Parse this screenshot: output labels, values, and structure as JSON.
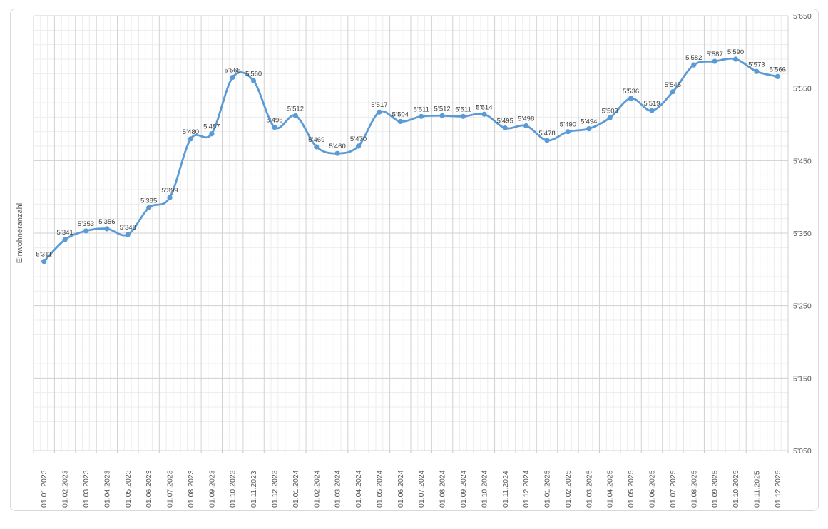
{
  "chart_style": {
    "line_color": "#5B9BD5",
    "marker_color": "#5B9BD5",
    "grid_major_color": "#d2d2d2",
    "grid_minor_color": "#ededed",
    "axis_line_color": "#c6c6c6",
    "axis_text_color": "#595959",
    "data_label_color": "#3d3d3d",
    "chart_border_color": "#d9d9d9",
    "background_color": "#ffffff"
  },
  "chart_data": {
    "type": "line",
    "title": "",
    "xlabel": "",
    "ylabel": "Einwohneranzahl",
    "legend": "none",
    "smooth": true,
    "marker": "circle",
    "grid": true,
    "ylim": [
      5050,
      5650
    ],
    "y_major_unit": 100,
    "y_minor_unit": 20,
    "x_minor_divisions_per_interval": 3,
    "y_ticks": [
      "5’650",
      "5’550",
      "5’450",
      "5’350",
      "5’250",
      "5’150",
      "5’050"
    ],
    "categories": [
      "01.01.2023",
      "01.02.2023",
      "01.03.2023",
      "01.04.2023",
      "01.05.2023",
      "01.06.2023",
      "01.07.2023",
      "01.08.2023",
      "01.09.2023",
      "01.10.2023",
      "01.11.2023",
      "01.12.2023",
      "01.01.2024",
      "01.02.2024",
      "01.03.2024",
      "01.04.2024",
      "01.05.2024",
      "01.06.2024",
      "01.07.2024",
      "01.08.2024",
      "01.09.2024",
      "01.10.2024",
      "01.11.2024",
      "01.12.2024",
      "01.01.2025",
      "01.02.2025",
      "01.03.2025",
      "01.04.2025",
      "01.05.2025",
      "01.06.2025",
      "01.07.2025",
      "01.08.2025",
      "01.09.2025",
      "01.10.2025",
      "01.11.2025",
      "01.12.2025"
    ],
    "values": [
      5311,
      5341,
      5353,
      5356,
      5348,
      5385,
      5399,
      5480,
      5487,
      5565,
      5560,
      5496,
      5512,
      5469,
      5460,
      5470,
      5517,
      5504,
      5511,
      5512,
      5511,
      5514,
      5495,
      5498,
      5478,
      5490,
      5494,
      5509,
      5536,
      5519,
      5545,
      5582,
      5587,
      5590,
      5573,
      5566
    ],
    "data_labels": [
      "5’311",
      "5’341",
      "5’353",
      "5’356",
      "5’348",
      "5’385",
      "5’399",
      "5’480",
      "5’487",
      "5’565",
      "5’560",
      "5’496",
      "5’512",
      "5’469",
      "5’460",
      "5’470",
      "5’517",
      "5’504",
      "5’511",
      "5’512",
      "5’511",
      "5’514",
      "5’495",
      "5’498",
      "5’478",
      "5’490",
      "5’494",
      "5’509",
      "5’536",
      "5’519",
      "5’545",
      "5’582",
      "5’587",
      "5’590",
      "5’573",
      "5’566"
    ]
  }
}
